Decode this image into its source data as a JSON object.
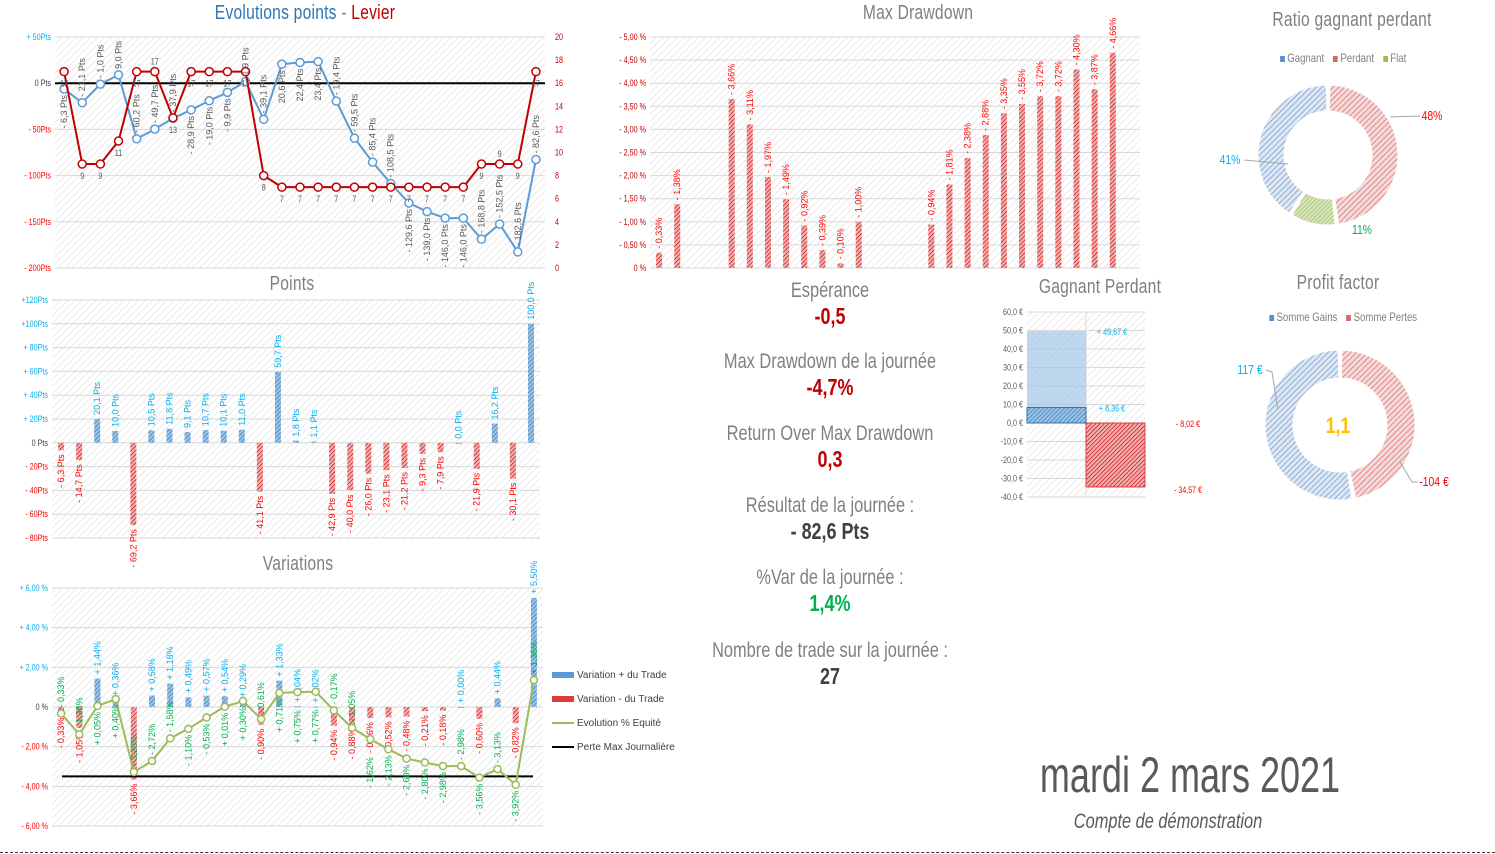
{
  "colors": {
    "blue": "#5b9bd5",
    "blue_dark": "#2e75b6",
    "red": "#e03c3c",
    "red_dark": "#c00000",
    "green": "#9bbb59",
    "label_blue": "#00b0f0",
    "label_red": "#ff0000",
    "label_green": "#00b050",
    "gold": "#ffc000"
  },
  "titles": {
    "evolution_a": "Evolutions points",
    "evolution_sep": " - ",
    "evolution_b": "Levier",
    "drawdown": "Max Drawdown",
    "points": "Points",
    "variations": "Variations",
    "gagnant_perdant": "Gagnant Perdant",
    "ratio": "Ratio gagnant perdant",
    "profit_factor": "Profit factor"
  },
  "stats": [
    {
      "label": "Espérance",
      "value": "-0,5",
      "color": "#c00000"
    },
    {
      "label": "Max Drawdown de la journée",
      "value": "-4,7%",
      "color": "#c00000"
    },
    {
      "label": "Return Over Max Drawdown",
      "value": "0,3",
      "color": "#c00000"
    },
    {
      "label": "Résultat de la journée :",
      "value": "- 82,6 Pts",
      "color": "#404040"
    },
    {
      "label": "%Var de la journée :",
      "value": "1,4%",
      "color": "#00b050"
    },
    {
      "label": "Nombre de trade sur la journée :",
      "value": "27",
      "color": "#404040"
    }
  ],
  "footer": {
    "date": "mardi 2 mars 2021",
    "account": "Compte de démonstration"
  },
  "chart_data": [
    {
      "id": "evolution",
      "type": "line",
      "title": "Evolutions points - Levier",
      "y_ticks": [
        "+ 50Pts",
        "0 Pts",
        "- 50Pts",
        "- 100Pts",
        "- 150Pts",
        "- 200Pts"
      ],
      "ylim": [
        -200,
        50
      ],
      "y2_ticks": [
        "20",
        "18",
        "16",
        "14",
        "12",
        "10",
        "8",
        "6",
        "4",
        "2",
        "0"
      ],
      "y2lim": [
        0,
        20
      ],
      "series": [
        {
          "name": "Evolution points",
          "axis": "left",
          "values": [
            -6.3,
            -21.1,
            -1.0,
            9.0,
            -60.2,
            -49.7,
            -37.9,
            -28.9,
            -19.0,
            -9.9,
            1.9,
            -39.1,
            20.6,
            22.4,
            23.4,
            -19.4,
            -59.5,
            -85.4,
            -108.5,
            -129.6,
            -139.0,
            -146.0,
            -146.0,
            -168.8,
            -152.5,
            -182.6,
            -82.6
          ]
        },
        {
          "name": "Levier",
          "axis": "right",
          "values": [
            17,
            9,
            9,
            11,
            17,
            17,
            13,
            17,
            17,
            17,
            17,
            8,
            7,
            7,
            7,
            7,
            7,
            7,
            7,
            7,
            7,
            7,
            7,
            9,
            9,
            9,
            17
          ]
        }
      ]
    },
    {
      "id": "points",
      "type": "bar",
      "title": "Points",
      "y_ticks": [
        "+120Pts",
        "+100Pts",
        "+ 80Pts",
        "+ 60Pts",
        "+ 40Pts",
        "+ 20Pts",
        "0 Pts",
        "- 20Pts",
        "- 40Pts",
        "- 60Pts",
        "- 80Pts"
      ],
      "ylim": [
        -80,
        120
      ],
      "values": [
        -6.3,
        -14.7,
        20.1,
        10.0,
        -69.2,
        10.5,
        11.8,
        9.1,
        10.7,
        10.1,
        11.0,
        -41.1,
        59.7,
        1.8,
        1.1,
        -42.9,
        -40.0,
        -26.0,
        -23.1,
        -21.2,
        -9.3,
        -7.9,
        0.0,
        -21.9,
        16.2,
        -30.1,
        100.0
      ]
    },
    {
      "id": "variations",
      "type": "bar",
      "title": "Variations",
      "y_ticks": [
        "+ 6,00 %",
        "+ 4,00 %",
        "+ 2,00 %",
        "0 %",
        "- 2,00 %",
        "- 4,00 %",
        "- 6,00 %"
      ],
      "ylim": [
        -6,
        6
      ],
      "legend": [
        "Variation + du Trade",
        "Variation - du Trade",
        "Evolution % Equité",
        "Perte Max Journalière"
      ],
      "values": [
        -0.33,
        -1.05,
        1.44,
        0.36,
        -3.66,
        0.58,
        1.18,
        0.49,
        0.57,
        0.54,
        0.29,
        -0.9,
        1.33,
        0.04,
        0.02,
        -0.94,
        -0.88,
        -0.56,
        -0.52,
        -0.48,
        -0.21,
        -0.18,
        0.0,
        -0.6,
        0.44,
        -0.82,
        5.5
      ],
      "equity": [
        -0.33,
        -1.38,
        0.05,
        0.4,
        -3.28,
        -2.72,
        -1.58,
        -1.1,
        -0.53,
        0.01,
        0.3,
        -0.61,
        0.71,
        0.75,
        0.77,
        -0.17,
        -1.05,
        -1.62,
        -2.13,
        -2.6,
        -2.8,
        -2.98,
        -2.98,
        -3.56,
        -3.13,
        -3.92,
        1.36
      ],
      "max_loss": -3.5
    },
    {
      "id": "drawdown",
      "type": "bar",
      "title": "Max Drawdown",
      "y_ticks": [
        "- 5,00 %",
        "- 4,50 %",
        "- 4,00 %",
        "- 3,50 %",
        "- 3,00 %",
        "- 2,50 %",
        "- 2,00 %",
        "- 1,50 %",
        "- 1,00 %",
        "- 0,50 %",
        "0 %"
      ],
      "ylim": [
        0,
        5
      ],
      "values": [
        0.33,
        1.38,
        0,
        0,
        3.66,
        3.11,
        1.97,
        1.49,
        0.92,
        0.39,
        0.1,
        1.0,
        0,
        0,
        0,
        0.94,
        1.81,
        2.38,
        2.88,
        3.35,
        3.55,
        3.72,
        3.72,
        4.3,
        3.87,
        4.66,
        0
      ]
    },
    {
      "id": "gagnant_perdant",
      "type": "bar",
      "title": "Gagnant Perdant",
      "y_ticks": [
        "60,0 €",
        "50,0 €",
        "40,0 €",
        "30,0 €",
        "20,0 €",
        "10,0 €",
        "0,0 €",
        "-10,0 €",
        "-20,0 €",
        "-30,0 €",
        "-40,0 €"
      ],
      "ylim": [
        -40,
        60
      ],
      "gain_max": 49.67,
      "gain_avg": 8.36,
      "loss_avg": -8.02,
      "loss_max": -34.57,
      "labels": [
        "+ 49,67 €",
        "+ 8,36 €",
        "- 8,02 €",
        "- 34,57 €"
      ]
    },
    {
      "id": "ratio",
      "type": "pie",
      "title": "Ratio gagnant perdant",
      "legend": [
        "Gagnant",
        "Perdant",
        "Flat"
      ],
      "values": [
        41,
        48,
        11
      ],
      "labels": [
        "41%",
        "48%",
        "11%"
      ]
    },
    {
      "id": "profit_factor",
      "type": "pie",
      "title": "Profit factor",
      "legend": [
        "Somme Gains",
        "Somme Pertes"
      ],
      "values": [
        117,
        104
      ],
      "labels": [
        "117 €",
        "-104 €"
      ],
      "center": "1,1"
    }
  ]
}
